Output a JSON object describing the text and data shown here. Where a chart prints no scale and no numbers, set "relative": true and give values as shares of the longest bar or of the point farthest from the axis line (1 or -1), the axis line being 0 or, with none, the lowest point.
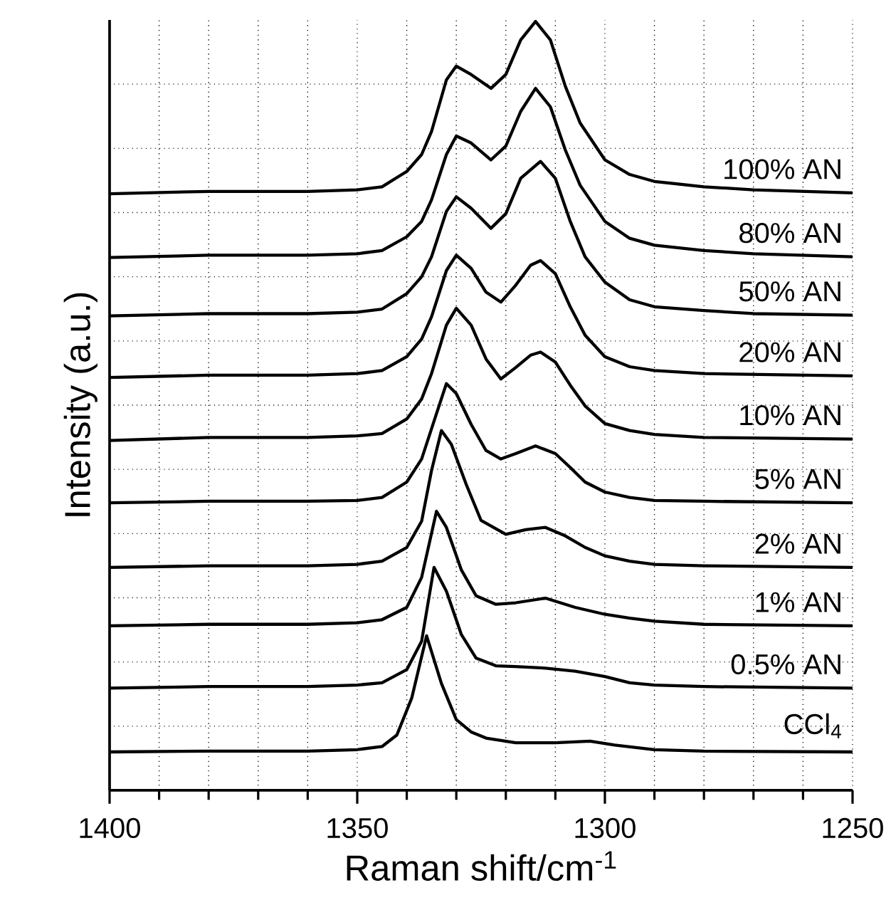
{
  "chart_data": {
    "type": "line",
    "xlabel": "Raman shift/cm$^{-1}$",
    "ylabel": "Intensity  (a.u.)",
    "relative": true,
    "xlim": [
      1400,
      1250
    ],
    "xticks": [
      1400,
      1350,
      1300,
      1250
    ],
    "grid": true,
    "line_style": "solid",
    "marker": "none",
    "series": [
      {
        "name": "100% AN",
        "color": "#000000",
        "x": [
          1400,
          1380,
          1360,
          1350,
          1345,
          1340,
          1337,
          1335,
          1332,
          1330,
          1327,
          1323,
          1320,
          1317,
          1314,
          1311,
          1308,
          1305,
          1300,
          1295,
          1290,
          1280,
          1270,
          1250
        ],
        "values": [
          0.776,
          0.779,
          0.779,
          0.781,
          0.785,
          0.805,
          0.827,
          0.857,
          0.924,
          0.942,
          0.931,
          0.913,
          0.931,
          0.976,
          1.0,
          0.976,
          0.916,
          0.868,
          0.82,
          0.801,
          0.792,
          0.785,
          0.781,
          0.777
        ]
      },
      {
        "name": "80% AN",
        "color": "#000000",
        "x": [
          1400,
          1380,
          1360,
          1350,
          1345,
          1340,
          1337,
          1335,
          1332,
          1330,
          1327,
          1323,
          1320,
          1317,
          1314,
          1311,
          1308,
          1305,
          1300,
          1295,
          1290,
          1280,
          1270,
          1250
        ],
        "values": [
          0.693,
          0.696,
          0.696,
          0.698,
          0.702,
          0.72,
          0.74,
          0.768,
          0.827,
          0.851,
          0.842,
          0.82,
          0.838,
          0.883,
          0.913,
          0.889,
          0.833,
          0.787,
          0.74,
          0.718,
          0.709,
          0.702,
          0.698,
          0.694
        ]
      },
      {
        "name": "50% AN",
        "color": "#000000",
        "x": [
          1400,
          1380,
          1360,
          1350,
          1345,
          1340,
          1337,
          1335,
          1332,
          1330,
          1327,
          1323,
          1320,
          1317,
          1313,
          1310,
          1307,
          1304,
          1300,
          1295,
          1290,
          1280,
          1270,
          1250
        ],
        "values": [
          0.617,
          0.62,
          0.62,
          0.622,
          0.626,
          0.646,
          0.668,
          0.694,
          0.753,
          0.772,
          0.757,
          0.731,
          0.75,
          0.796,
          0.818,
          0.796,
          0.74,
          0.694,
          0.661,
          0.638,
          0.629,
          0.624,
          0.62,
          0.618
        ]
      },
      {
        "name": "20% AN",
        "color": "#000000",
        "x": [
          1400,
          1380,
          1360,
          1350,
          1345,
          1340,
          1337,
          1335,
          1332,
          1330,
          1327,
          1324,
          1321,
          1318,
          1315,
          1313,
          1310,
          1307,
          1304,
          1300,
          1295,
          1290,
          1280,
          1250
        ],
        "values": [
          0.537,
          0.54,
          0.54,
          0.542,
          0.546,
          0.564,
          0.587,
          0.616,
          0.676,
          0.696,
          0.679,
          0.648,
          0.635,
          0.657,
          0.683,
          0.689,
          0.672,
          0.629,
          0.592,
          0.564,
          0.551,
          0.546,
          0.542,
          0.539
        ]
      },
      {
        "name": "10% AN",
        "color": "#000000",
        "x": [
          1400,
          1380,
          1360,
          1350,
          1345,
          1340,
          1337,
          1335,
          1332,
          1330,
          1327,
          1324,
          1321,
          1318,
          1315,
          1313,
          1310,
          1307,
          1304,
          1300,
          1295,
          1290,
          1280,
          1250
        ],
        "values": [
          0.455,
          0.459,
          0.459,
          0.461,
          0.464,
          0.483,
          0.509,
          0.542,
          0.605,
          0.627,
          0.605,
          0.561,
          0.535,
          0.55,
          0.566,
          0.57,
          0.557,
          0.527,
          0.5,
          0.477,
          0.468,
          0.463,
          0.459,
          0.457
        ]
      },
      {
        "name": "5% AN",
        "color": "#000000",
        "x": [
          1400,
          1380,
          1360,
          1350,
          1345,
          1340,
          1337,
          1334,
          1332,
          1330,
          1327,
          1324,
          1321,
          1318,
          1314,
          1310,
          1307,
          1304,
          1300,
          1295,
          1290,
          1280,
          1250
        ],
        "values": [
          0.374,
          0.376,
          0.376,
          0.377,
          0.381,
          0.401,
          0.431,
          0.49,
          0.529,
          0.516,
          0.476,
          0.442,
          0.431,
          0.438,
          0.448,
          0.438,
          0.42,
          0.401,
          0.388,
          0.381,
          0.377,
          0.376,
          0.374
        ]
      },
      {
        "name": "2% AN",
        "color": "#000000",
        "x": [
          1400,
          1380,
          1360,
          1350,
          1345,
          1340,
          1337,
          1335,
          1333,
          1331,
          1328,
          1325,
          1320,
          1316,
          1312,
          1308,
          1304,
          1300,
          1295,
          1290,
          1280,
          1250
        ],
        "values": [
          0.29,
          0.292,
          0.292,
          0.294,
          0.298,
          0.316,
          0.35,
          0.416,
          0.468,
          0.45,
          0.398,
          0.351,
          0.333,
          0.339,
          0.342,
          0.331,
          0.316,
          0.305,
          0.298,
          0.294,
          0.292,
          0.29
        ]
      },
      {
        "name": "1% AN",
        "color": "#000000",
        "x": [
          1400,
          1380,
          1360,
          1350,
          1345,
          1340,
          1337,
          1334,
          1332,
          1329,
          1326,
          1322,
          1318,
          1312,
          1306,
          1300,
          1295,
          1290,
          1280,
          1250
        ],
        "values": [
          0.214,
          0.216,
          0.216,
          0.218,
          0.222,
          0.238,
          0.277,
          0.363,
          0.342,
          0.287,
          0.253,
          0.242,
          0.244,
          0.25,
          0.238,
          0.229,
          0.224,
          0.22,
          0.216,
          0.214
        ]
      },
      {
        "name": "0.5% AN",
        "color": "#000000",
        "x": [
          1400,
          1380,
          1360,
          1350,
          1345,
          1340,
          1337,
          1334.5,
          1332,
          1329,
          1326,
          1322,
          1318,
          1312,
          1306,
          1300,
          1295,
          1290,
          1280,
          1250
        ],
        "values": [
          0.133,
          0.135,
          0.135,
          0.137,
          0.14,
          0.157,
          0.194,
          0.29,
          0.259,
          0.203,
          0.172,
          0.162,
          0.161,
          0.159,
          0.155,
          0.148,
          0.14,
          0.137,
          0.135,
          0.133
        ]
      },
      {
        "name": "CCl$_{4}$",
        "color": "#000000",
        "x": [
          1400,
          1380,
          1360,
          1350,
          1345,
          1342,
          1339,
          1336,
          1333,
          1330,
          1327,
          1324,
          1318,
          1310,
          1303,
          1298,
          1290,
          1280,
          1250
        ],
        "values": [
          0.05,
          0.051,
          0.051,
          0.053,
          0.057,
          0.072,
          0.12,
          0.201,
          0.139,
          0.092,
          0.076,
          0.068,
          0.062,
          0.062,
          0.064,
          0.059,
          0.053,
          0.051,
          0.05
        ]
      }
    ]
  }
}
